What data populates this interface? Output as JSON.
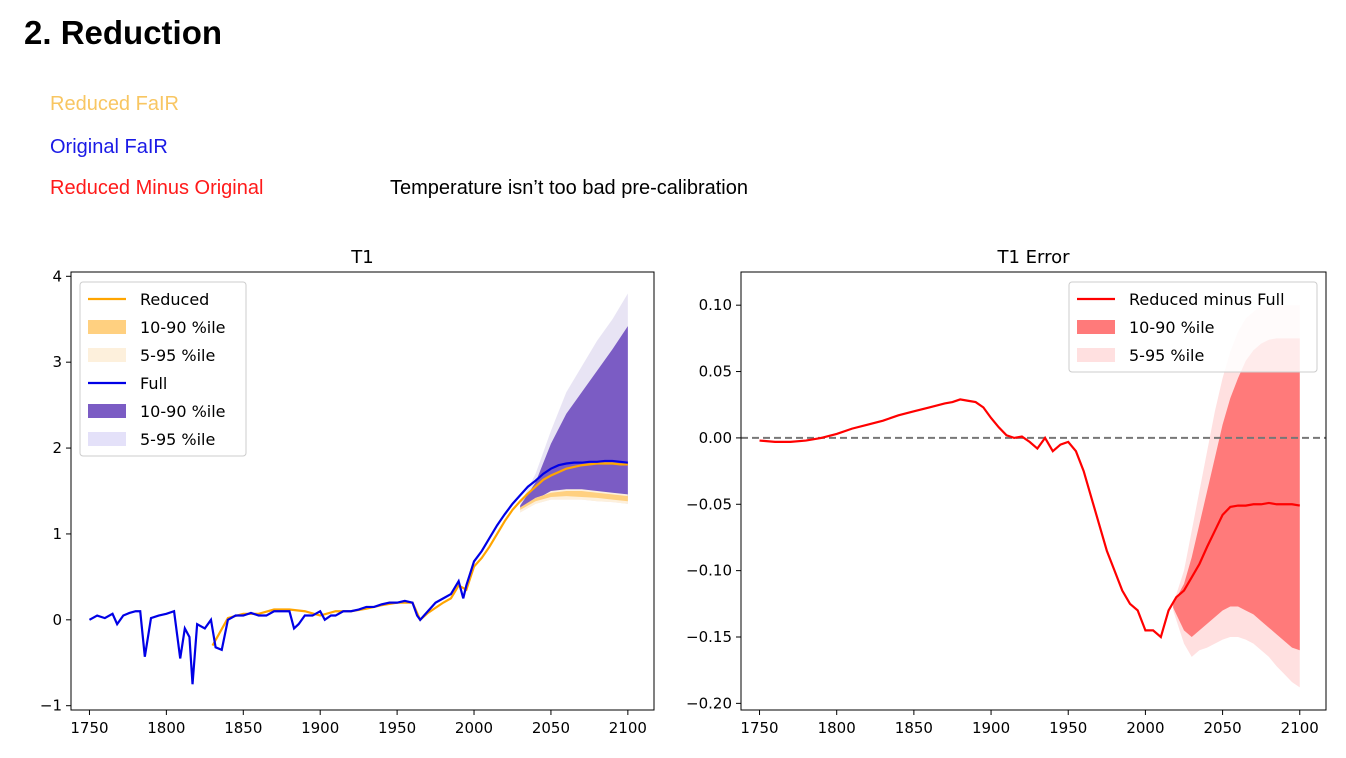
{
  "slide": {
    "title": "2. Reduction",
    "labels": [
      {
        "text": "Reduced FaIR",
        "color": "#f8c662"
      },
      {
        "text": "Original FaIR",
        "color": "#1a1ae6"
      },
      {
        "text": "Reduced Minus Original",
        "color": "#ff1a1a"
      }
    ],
    "note": "Temperature isn’t too bad pre-calibration"
  },
  "chart_data": [
    {
      "type": "line",
      "title": "T1",
      "xlabel": "",
      "ylabel": "",
      "xlim": [
        1738,
        2117
      ],
      "ylim": [
        -1.05,
        4.05
      ],
      "xticks": [
        1750,
        1800,
        1850,
        1900,
        1950,
        2000,
        2050,
        2100
      ],
      "yticks": [
        -1,
        0,
        1,
        2,
        3,
        4
      ],
      "ytick_labels": [
        "−1",
        "0",
        "1",
        "2",
        "3",
        "4"
      ],
      "legend_position": "upper-left",
      "legend": [
        "Reduced",
        "10-90 %ile",
        "5-95 %ile",
        "Full",
        "10-90 %ile",
        "5-95 %ile"
      ],
      "colors": {
        "reduced": "#ffa500",
        "reduced_band": "#ffd080",
        "reduced_band_outer": "#fdf0dc",
        "full": "#0000e6",
        "full_band": "#7b5cc4",
        "full_band_outer": "#e8e4f4"
      },
      "series": [
        {
          "name": "Full",
          "x": [
            1750,
            1755,
            1760,
            1765,
            1768,
            1772,
            1776,
            1780,
            1783,
            1786,
            1790,
            1795,
            1800,
            1805,
            1809,
            1812,
            1815,
            1817,
            1820,
            1825,
            1829,
            1832,
            1836,
            1840,
            1845,
            1850,
            1855,
            1860,
            1865,
            1870,
            1875,
            1880,
            1883,
            1886,
            1890,
            1895,
            1900,
            1903,
            1907,
            1910,
            1915,
            1920,
            1925,
            1930,
            1935,
            1940,
            1945,
            1950,
            1955,
            1960,
            1963,
            1965,
            1970,
            1975,
            1980,
            1985,
            1990,
            1993,
            1995,
            2000,
            2005,
            2010,
            2015,
            2020,
            2025,
            2030,
            2035,
            2040,
            2045,
            2050,
            2055,
            2060,
            2065,
            2070,
            2075,
            2080,
            2085,
            2090,
            2095,
            2100
          ],
          "values": [
            0,
            0.05,
            0.02,
            0.07,
            -0.05,
            0.05,
            0.08,
            0.1,
            0.1,
            -0.43,
            0.02,
            0.05,
            0.07,
            0.1,
            -0.45,
            -0.1,
            -0.2,
            -0.75,
            -0.05,
            -0.1,
            0,
            -0.32,
            -0.35,
            0,
            0.05,
            0.05,
            0.08,
            0.05,
            0.05,
            0.1,
            0.1,
            0.1,
            -0.1,
            -0.05,
            0.05,
            0.05,
            0.1,
            0,
            0.05,
            0.05,
            0.1,
            0.1,
            0.12,
            0.15,
            0.15,
            0.18,
            0.2,
            0.2,
            0.22,
            0.2,
            0.05,
            0,
            0.1,
            0.2,
            0.25,
            0.3,
            0.45,
            0.25,
            0.4,
            0.68,
            0.8,
            0.95,
            1.1,
            1.23,
            1.35,
            1.45,
            1.55,
            1.62,
            1.7,
            1.76,
            1.8,
            1.82,
            1.83,
            1.83,
            1.84,
            1.84,
            1.85,
            1.85,
            1.84,
            1.83
          ]
        },
        {
          "name": "Reduced",
          "x": [
            1830,
            1840,
            1850,
            1860,
            1870,
            1880,
            1890,
            1900,
            1910,
            1920,
            1930,
            1940,
            1950,
            1960,
            1965,
            1970,
            1980,
            1985,
            1990,
            1995,
            2000,
            2005,
            2010,
            2015,
            2020,
            2025,
            2030,
            2035,
            2040,
            2045,
            2050,
            2055,
            2060,
            2065,
            2070,
            2075,
            2080,
            2085,
            2090,
            2095,
            2100
          ],
          "values": [
            -0.3,
            0.02,
            0.07,
            0.07,
            0.12,
            0.12,
            0.1,
            0.05,
            0.1,
            0.1,
            0.13,
            0.17,
            0.2,
            0.2,
            0,
            0.08,
            0.2,
            0.25,
            0.4,
            0.35,
            0.62,
            0.72,
            0.85,
            1,
            1.15,
            1.28,
            1.38,
            1.47,
            1.55,
            1.63,
            1.68,
            1.72,
            1.76,
            1.78,
            1.8,
            1.81,
            1.82,
            1.82,
            1.82,
            1.81,
            1.81
          ]
        }
      ],
      "bands": [
        {
          "name": "5-95 %ile",
          "of": "Full",
          "x": [
            2030,
            2040,
            2050,
            2060,
            2070,
            2080,
            2090,
            2100
          ],
          "low": [
            1.25,
            1.35,
            1.4,
            1.4,
            1.4,
            1.38,
            1.37,
            1.35
          ],
          "high": [
            1.35,
            1.7,
            2.2,
            2.65,
            2.95,
            3.25,
            3.5,
            3.8
          ]
        },
        {
          "name": "10-90 %ile",
          "of": "Full",
          "x": [
            2030,
            2040,
            2050,
            2060,
            2070,
            2080,
            2090,
            2100
          ],
          "low": [
            1.3,
            1.42,
            1.48,
            1.48,
            1.47,
            1.45,
            1.43,
            1.42
          ],
          "high": [
            1.33,
            1.6,
            2.05,
            2.4,
            2.65,
            2.9,
            3.15,
            3.42
          ]
        },
        {
          "name": "5-95 %ile",
          "of": "Reduced",
          "x": [
            2030,
            2040,
            2050,
            2060,
            2070,
            2080,
            2090,
            2100
          ],
          "low": [
            1.25,
            1.35,
            1.4,
            1.4,
            1.4,
            1.38,
            1.37,
            1.35
          ],
          "high": [
            1.28,
            1.4,
            1.5,
            1.52,
            1.52,
            1.5,
            1.48,
            1.46
          ]
        },
        {
          "name": "10-90 %ile",
          "of": "Reduced",
          "x": [
            2030,
            2040,
            2050,
            2060,
            2070,
            2080,
            2090,
            2100
          ],
          "low": [
            1.28,
            1.38,
            1.43,
            1.44,
            1.43,
            1.42,
            1.4,
            1.38
          ],
          "high": [
            1.31,
            1.42,
            1.48,
            1.5,
            1.5,
            1.48,
            1.46,
            1.44
          ]
        }
      ]
    },
    {
      "type": "line",
      "title": "T1 Error",
      "xlabel": "",
      "ylabel": "",
      "xlim": [
        1738,
        2117
      ],
      "ylim": [
        -0.205,
        0.125
      ],
      "xticks": [
        1750,
        1800,
        1850,
        1900,
        1950,
        2000,
        2050,
        2100
      ],
      "yticks": [
        -0.2,
        -0.15,
        -0.1,
        -0.05,
        0,
        0.05,
        0.1
      ],
      "ytick_labels": [
        "−0.20",
        "−0.15",
        "−0.10",
        "−0.05",
        "0.00",
        "0.05",
        "0.10"
      ],
      "legend_position": "upper-right",
      "legend": [
        "Reduced minus Full",
        "10-90 %ile",
        "5-95 %ile"
      ],
      "colors": {
        "line": "#ff0000",
        "band": "#ff7a7a",
        "band_outer": "#ffe0e0",
        "zero": "#777777"
      },
      "series": [
        {
          "name": "Reduced minus Full",
          "x": [
            1750,
            1760,
            1770,
            1780,
            1790,
            1800,
            1810,
            1820,
            1830,
            1840,
            1850,
            1860,
            1870,
            1875,
            1880,
            1885,
            1890,
            1895,
            1900,
            1905,
            1910,
            1915,
            1920,
            1925,
            1930,
            1935,
            1940,
            1945,
            1950,
            1955,
            1960,
            1965,
            1970,
            1975,
            1980,
            1985,
            1990,
            1995,
            2000,
            2005,
            2010,
            2015,
            2020,
            2025,
            2030,
            2035,
            2040,
            2045,
            2050,
            2055,
            2060,
            2065,
            2070,
            2075,
            2080,
            2085,
            2090,
            2095,
            2100
          ],
          "values": [
            -0.002,
            -0.003,
            -0.003,
            -0.002,
            0,
            0.003,
            0.007,
            0.01,
            0.013,
            0.017,
            0.02,
            0.023,
            0.026,
            0.027,
            0.029,
            0.028,
            0.027,
            0.023,
            0.015,
            0.008,
            0.002,
            0,
            0.001,
            -0.003,
            -0.008,
            0,
            -0.01,
            -0.005,
            -0.003,
            -0.01,
            -0.025,
            -0.045,
            -0.065,
            -0.085,
            -0.1,
            -0.115,
            -0.125,
            -0.13,
            -0.145,
            -0.145,
            -0.15,
            -0.13,
            -0.12,
            -0.115,
            -0.105,
            -0.095,
            -0.082,
            -0.07,
            -0.058,
            -0.052,
            -0.051,
            -0.051,
            -0.05,
            -0.05,
            -0.049,
            -0.05,
            -0.05,
            -0.05,
            -0.051
          ]
        }
      ],
      "bands": [
        {
          "name": "5-95 %ile",
          "x": [
            2018,
            2025,
            2030,
            2035,
            2040,
            2045,
            2050,
            2055,
            2060,
            2065,
            2070,
            2075,
            2080,
            2085,
            2090,
            2095,
            2100
          ],
          "low": [
            -0.13,
            -0.155,
            -0.165,
            -0.16,
            -0.158,
            -0.155,
            -0.152,
            -0.15,
            -0.15,
            -0.152,
            -0.155,
            -0.16,
            -0.165,
            -0.172,
            -0.178,
            -0.184,
            -0.188
          ],
          "high": [
            -0.125,
            -0.1,
            -0.07,
            -0.04,
            -0.01,
            0.02,
            0.045,
            0.065,
            0.08,
            0.09,
            0.095,
            0.1,
            0.1,
            0.1,
            0.1,
            0.1,
            0.1
          ]
        },
        {
          "name": "10-90 %ile",
          "x": [
            2018,
            2025,
            2030,
            2035,
            2040,
            2045,
            2050,
            2055,
            2060,
            2065,
            2070,
            2075,
            2080,
            2085,
            2090,
            2095,
            2100
          ],
          "low": [
            -0.128,
            -0.145,
            -0.15,
            -0.145,
            -0.14,
            -0.135,
            -0.13,
            -0.127,
            -0.127,
            -0.13,
            -0.133,
            -0.138,
            -0.143,
            -0.148,
            -0.153,
            -0.158,
            -0.16
          ],
          "high": [
            -0.125,
            -0.11,
            -0.09,
            -0.065,
            -0.04,
            -0.015,
            0.01,
            0.03,
            0.045,
            0.058,
            0.066,
            0.071,
            0.074,
            0.075,
            0.075,
            0.075,
            0.075
          ]
        }
      ]
    }
  ]
}
